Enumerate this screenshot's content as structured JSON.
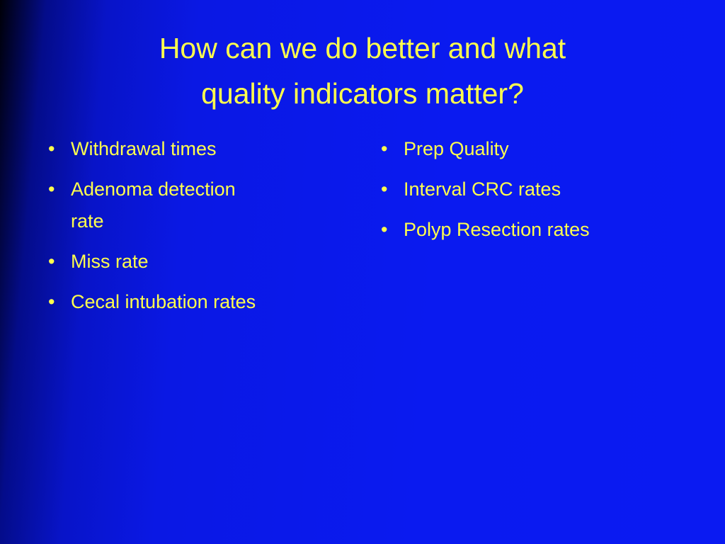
{
  "title": "How can we do better and what quality indicators matter?",
  "left_bullets": [
    "Withdrawal times",
    "Adenoma detection rate",
    "Miss rate",
    "Cecal intubation rates"
  ],
  "right_bullets": [
    "Prep Quality",
    "Interval CRC rates",
    "Polyp Resection rates"
  ]
}
